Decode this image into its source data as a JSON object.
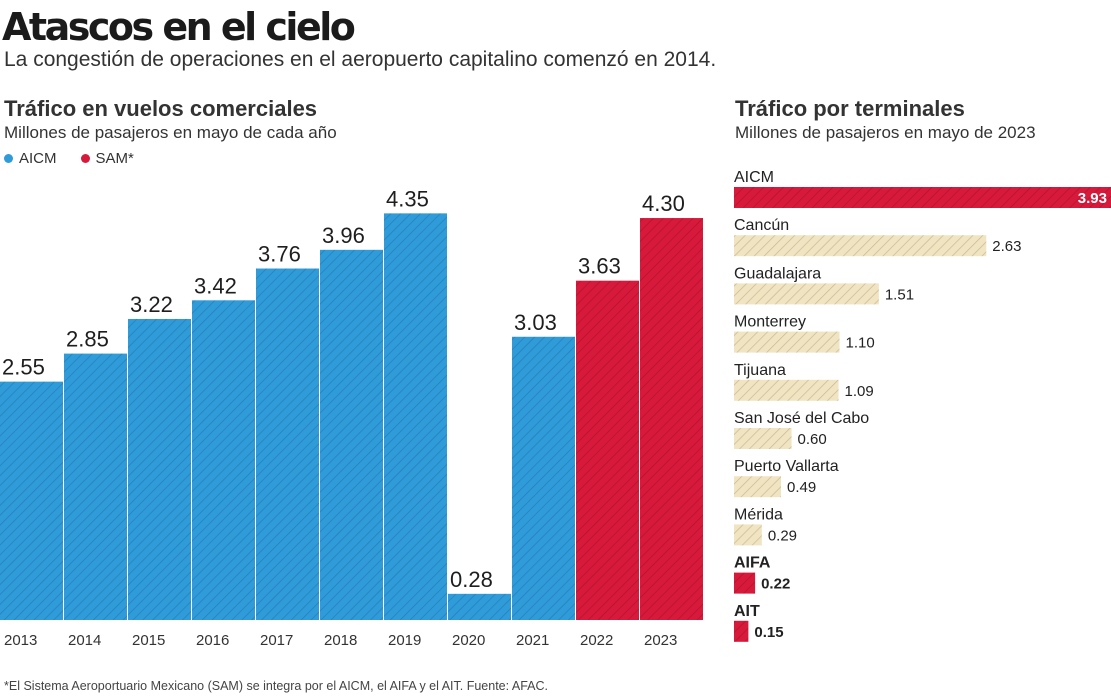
{
  "title": "Atascos en el cielo",
  "subtitle": "La congestión de operaciones en el aeropuerto capitalino comenzó en 2014.",
  "colors": {
    "aicm": "#2f9bd9",
    "sam": "#d7193b",
    "other": "#f0e4c3",
    "hatch_other": "#c9b98e"
  },
  "chart_data": [
    {
      "type": "bar",
      "title": "Tráfico en vuelos comerciales",
      "subtitle": "Millones de pasajeros en mayo de cada año",
      "legend": [
        {
          "name": "AICM",
          "color": "#2f9bd9"
        },
        {
          "name": "SAM*",
          "color": "#d7193b"
        }
      ],
      "categories": [
        "2013",
        "2014",
        "2015",
        "2016",
        "2017",
        "2018",
        "2019",
        "2020",
        "2021",
        "2022",
        "2023"
      ],
      "values": [
        2.55,
        2.85,
        3.22,
        3.42,
        3.76,
        3.96,
        4.35,
        0.28,
        3.03,
        3.63,
        4.3
      ],
      "labels": [
        "2.55",
        "2.85",
        "3.22",
        "3.42",
        "3.76",
        "3.96",
        "4.35",
        "0.28",
        "3.03",
        "3.63",
        "4.30"
      ],
      "series_of_bar": [
        "AICM",
        "AICM",
        "AICM",
        "AICM",
        "AICM",
        "AICM",
        "AICM",
        "AICM",
        "AICM",
        "SAM*",
        "SAM*"
      ],
      "ylim": [
        0,
        4.6
      ]
    },
    {
      "type": "bar",
      "orientation": "horizontal",
      "title": "Tráfico por terminales",
      "subtitle": "Millones de pasajeros en mayo de 2023",
      "categories": [
        "AICM",
        "Cancún",
        "Guadalajara",
        "Monterrey",
        "Tijuana",
        "San José del Cabo",
        "Puerto Vallarta",
        "Mérida",
        "AIFA",
        "AIT"
      ],
      "values": [
        3.93,
        2.63,
        1.51,
        1.1,
        1.09,
        0.6,
        0.49,
        0.29,
        0.22,
        0.15
      ],
      "labels": [
        "3.93",
        "2.63",
        "1.51",
        "1.10",
        "1.09",
        "0.60",
        "0.49",
        "0.29",
        "0.22",
        "0.15"
      ],
      "highlighted": [
        true,
        false,
        false,
        false,
        false,
        false,
        false,
        false,
        true,
        true
      ],
      "xlim": [
        0,
        3.93
      ]
    }
  ],
  "footnote": "*El Sistema Aeroportuario Mexicano (SAM) se integra por el AICM, el AIFA y el AIT. Fuente: AFAC."
}
